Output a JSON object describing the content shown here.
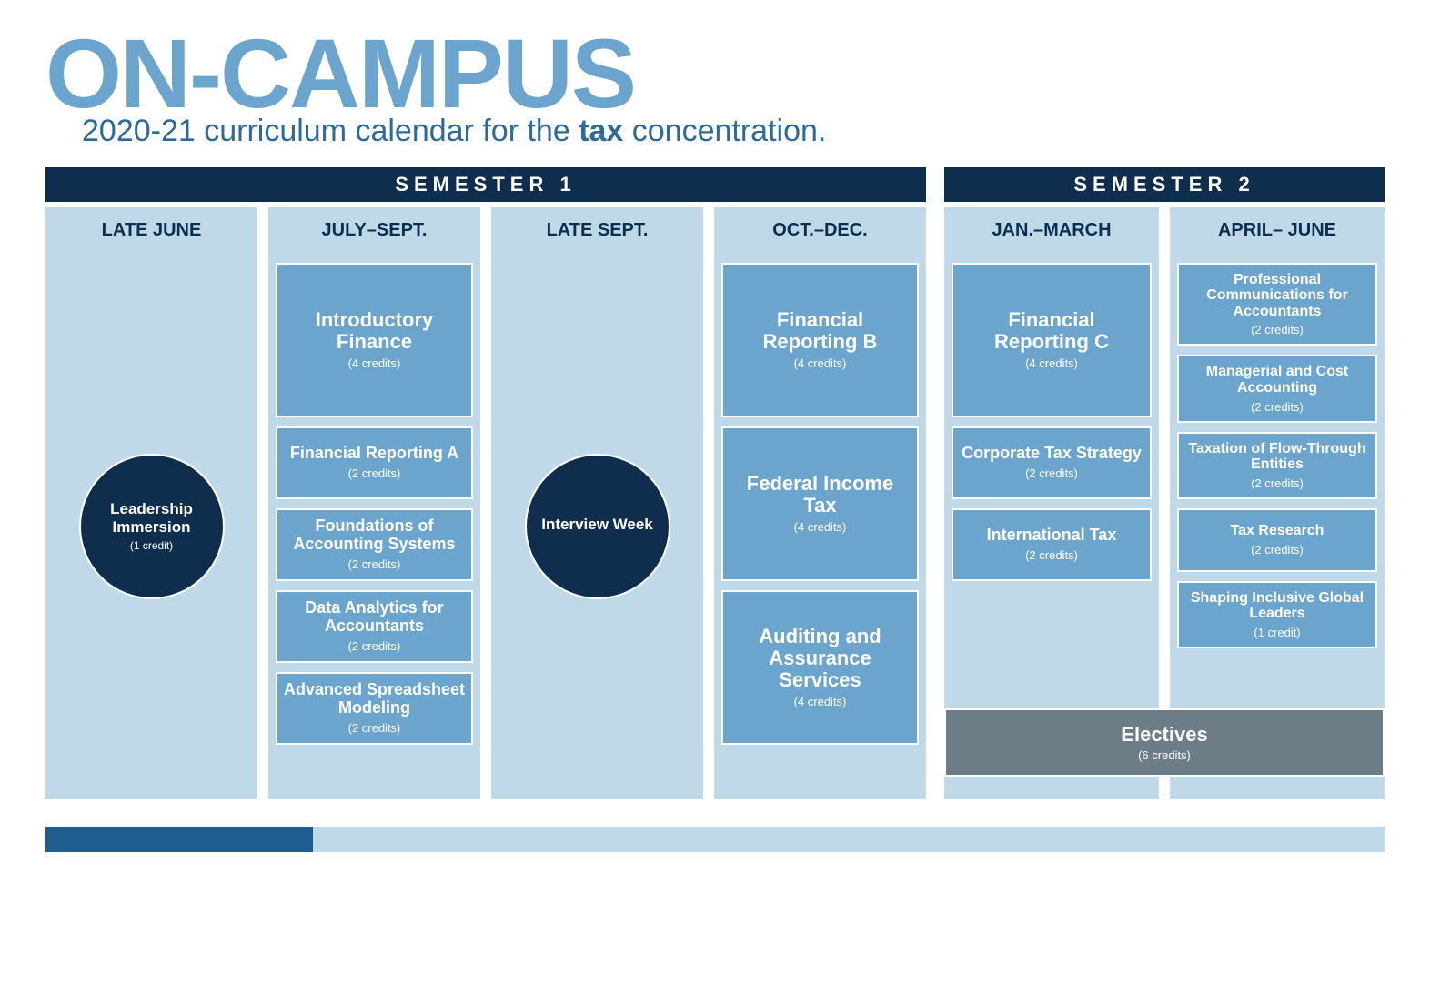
{
  "header": {
    "title": "ON-CAMPUS",
    "subtitle_pre": "2020-21 curriculum calendar for the ",
    "subtitle_bold": "tax",
    "subtitle_post": " concentration."
  },
  "colors": {
    "title_color": "#6ba4cc",
    "subtitle_color": "#2b6a9a",
    "sem_header_bg": "#0f2e4d",
    "col_bg": "#c0d9e8",
    "card_bg": "#6ba4cc",
    "circle_bg": "#0f2e4d",
    "electives_bg": "#6d7d88",
    "white": "#ffffff"
  },
  "semesters": [
    {
      "label": "SEMESTER 1"
    },
    {
      "label": "SEMESTER 2"
    }
  ],
  "columns": {
    "late_june": {
      "header": "LATE JUNE",
      "circle": {
        "title": "Leadership Immersion",
        "credits": "(1 credit)"
      }
    },
    "july_sept": {
      "header": "JULY–SEPT.",
      "cards": [
        {
          "title": "Introductory Finance",
          "credits": "(4 credits)",
          "size": "big"
        },
        {
          "title": "Financial Reporting A",
          "credits": "(2 credits)",
          "size": "med"
        },
        {
          "title": "Foundations of Accounting Systems",
          "credits": "(2 credits)",
          "size": "med"
        },
        {
          "title": "Data Analytics for Accountants",
          "credits": "(2 credits)",
          "size": "med"
        },
        {
          "title": "Advanced Spreadsheet Modeling",
          "credits": "(2 credits)",
          "size": "med"
        }
      ]
    },
    "late_sept": {
      "header": "LATE SEPT.",
      "circle": {
        "title": "Interview Week",
        "credits": ""
      }
    },
    "oct_dec": {
      "header": "OCT.–DEC.",
      "cards": [
        {
          "title": "Financial Reporting B",
          "credits": "(4 credits)",
          "size": "big"
        },
        {
          "title": "Federal Income Tax",
          "credits": "(4 credits)",
          "size": "big"
        },
        {
          "title": "Auditing and Assurance Services",
          "credits": "(4 credits)",
          "size": "big"
        }
      ]
    },
    "jan_march": {
      "header": "JAN.–MARCH",
      "cards": [
        {
          "title": "Financial Reporting C",
          "credits": "(4 credits)",
          "size": "big"
        },
        {
          "title": "Corporate Tax Strategy",
          "credits": "(2 credits)",
          "size": "med"
        },
        {
          "title": "International Tax",
          "credits": "(2 credits)",
          "size": "med"
        }
      ]
    },
    "april_june": {
      "header": "APRIL– JUNE",
      "cards": [
        {
          "title": "Professional Communications for Accountants",
          "credits": "(2 credits)",
          "size": "sm"
        },
        {
          "title": "Managerial and Cost Accounting",
          "credits": "(2 credits)",
          "size": "sm"
        },
        {
          "title": "Taxation of Flow-Through Entities",
          "credits": "(2 credits)",
          "size": "sm"
        },
        {
          "title": "Tax Research",
          "credits": "(2 credits)",
          "size": "sm"
        },
        {
          "title": "Shaping Inclusive Global Leaders",
          "credits": "(1 credit)",
          "size": "sm"
        }
      ]
    }
  },
  "electives": {
    "title": "Electives",
    "credits": "(6 credits)"
  }
}
